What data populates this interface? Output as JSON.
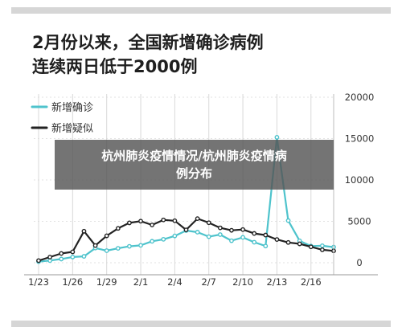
{
  "header": {
    "title_line1": "2月份以来，全国新增确诊病例",
    "title_line2": "连续两日低于2000例"
  },
  "banner": {
    "line1": "杭州肺炎疫情情况/杭州肺炎疫情病",
    "line2": "例分布"
  },
  "colors": {
    "confirmed": "#4ec3cc",
    "suspected": "#222222",
    "grid": "#d9d9d9"
  },
  "chart_data": {
    "type": "line",
    "x": [
      "1/23",
      "1/24",
      "1/25",
      "1/26",
      "1/27",
      "1/28",
      "1/29",
      "1/30",
      "1/31",
      "2/1",
      "2/2",
      "2/3",
      "2/4",
      "2/5",
      "2/6",
      "2/7",
      "2/8",
      "2/9",
      "2/10",
      "2/11",
      "2/12",
      "2/13",
      "2/14",
      "2/15",
      "2/16",
      "2/17",
      "2/18"
    ],
    "x_tick_labels": [
      "1/23",
      "1/26",
      "1/29",
      "2/1",
      "2/4",
      "2/7",
      "2/10",
      "2/13",
      "2/16"
    ],
    "ylim": [
      0,
      20000
    ],
    "y_ticks": [
      "0",
      "5000",
      "10000",
      "15000",
      "20000"
    ],
    "y_axis_side": "right",
    "legend_position": "top-left",
    "series": [
      {
        "name": "新增确诊",
        "color": "#4ec3cc",
        "values": [
          131,
          259,
          444,
          688,
          769,
          1771,
          1459,
          1737,
          1981,
          2099,
          2590,
          2829,
          3235,
          3887,
          3694,
          3143,
          3399,
          2656,
          3062,
          2478,
          2015,
          15152,
          5090,
          2641,
          2009,
          2048,
          1886
        ]
      },
      {
        "name": "新增疑似",
        "color": "#222222",
        "values": [
          257,
          680,
          1118,
          1309,
          3806,
          2077,
          3248,
          4148,
          4812,
          5019,
          4562,
          5173,
          5072,
          3971,
          5328,
          4833,
          4214,
          3916,
          4008,
          3536,
          3342,
          2807,
          2450,
          2277,
          1918,
          1563,
          1432
        ]
      }
    ]
  }
}
